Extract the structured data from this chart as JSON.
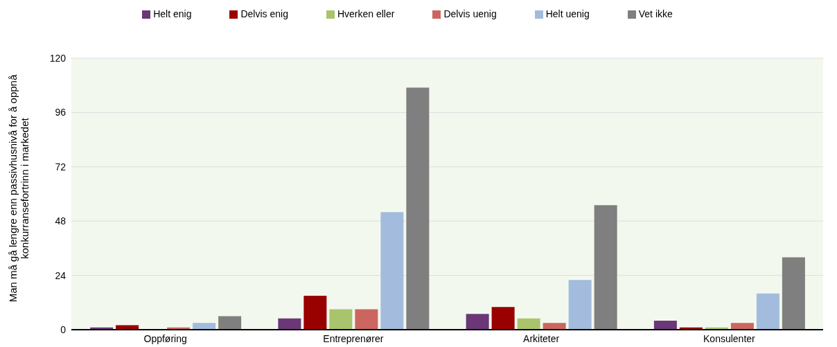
{
  "chart_data": {
    "type": "bar",
    "ylabel": "Man må gå lengre enn passivhusnivå for å oppnå konkurransefortrinn i markedet",
    "categories": [
      "Oppføring",
      "Entreprenører",
      "Arkiteter",
      "Konsulenter"
    ],
    "series": [
      {
        "name": "Helt enig",
        "color": "#6b3777",
        "values": [
          1,
          5,
          7,
          4
        ]
      },
      {
        "name": "Delvis enig",
        "color": "#990000",
        "values": [
          2,
          15,
          10,
          1
        ]
      },
      {
        "name": "Hverken eller",
        "color": "#a9c46c",
        "values": [
          0,
          9,
          5,
          1
        ]
      },
      {
        "name": "Delvis uenig",
        "color": "#cc6560",
        "values": [
          1,
          9,
          3,
          3
        ]
      },
      {
        "name": "Helt uenig",
        "color": "#a3bcdd",
        "values": [
          3,
          52,
          22,
          16
        ]
      },
      {
        "name": "Vet ikke",
        "color": "#7f7f7f",
        "values": [
          6,
          107,
          55,
          32
        ]
      }
    ],
    "ylim": [
      0,
      120
    ],
    "yticks": [
      0,
      24,
      48,
      72,
      96,
      120
    ],
    "grid": "y",
    "legend": "top"
  }
}
